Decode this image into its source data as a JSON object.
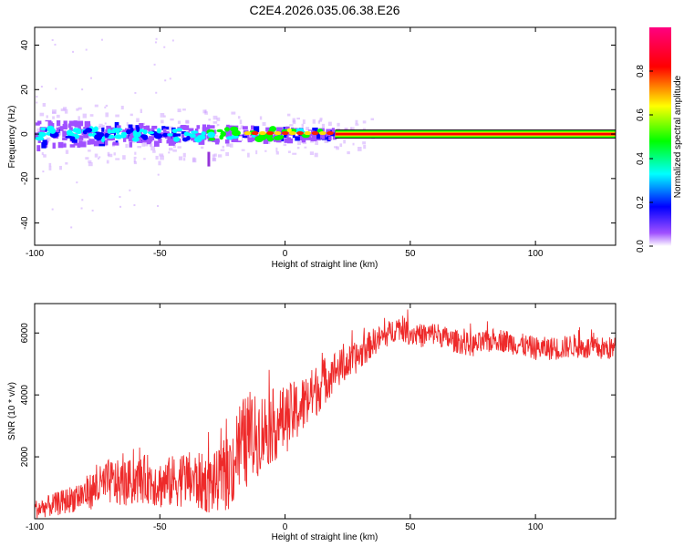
{
  "title": "C2E4.2026.035.06.38.E26",
  "chart_data": [
    {
      "type": "heatmap",
      "name": "spectrogram",
      "xlabel": "Height of straight line (km)",
      "ylabel": "Frequency (Hz)",
      "xlim": [
        -100,
        132
      ],
      "ylim": [
        -50,
        48
      ],
      "xticks": [
        -100,
        -50,
        0,
        50,
        100
      ],
      "yticks": [
        -40,
        -20,
        0,
        20,
        40
      ],
      "xtick_labels": [
        "-100",
        "-50",
        "0",
        "50",
        "100"
      ],
      "ytick_labels": [
        "-40",
        "-20",
        "0",
        "20",
        "40"
      ],
      "band_center_hz": 0,
      "colorbar": {
        "label": "Normalized spectral amplitude",
        "range": [
          0,
          1
        ],
        "ticks": [
          0.0,
          0.2,
          0.4,
          0.6,
          0.8
        ],
        "tick_labels": [
          "0.0",
          "0.2",
          "0.4",
          "0.6",
          "0.8"
        ],
        "stops": [
          "#ffffff",
          "#a050ff",
          "#0000ff",
          "#00ffff",
          "#00ff00",
          "#ffff00",
          "#ff0000",
          "#ff0080"
        ]
      },
      "features": [
        {
          "label": "broadband noise",
          "x_range_km": [
            -100,
            20
          ],
          "freq_spread_hz": 6,
          "amplitude": 0.3
        },
        {
          "label": "steady carrier",
          "x_range_km": [
            20,
            132
          ],
          "freq_hz": 0,
          "amplitude": 0.9
        }
      ]
    },
    {
      "type": "line",
      "name": "snr",
      "xlabel": "Height of straight line (km)",
      "ylabel": "SNR (10 * v/v)",
      "xlim": [
        -100,
        132
      ],
      "ylim": [
        0,
        6950
      ],
      "xticks": [
        -100,
        -50,
        0,
        50,
        100
      ],
      "yticks": [
        2000,
        4000,
        6000
      ],
      "xtick_labels": [
        "-100",
        "-50",
        "0",
        "50",
        "100"
      ],
      "ytick_labels": [
        "2000",
        "4000",
        "6000"
      ],
      "color": "#ee2a2a",
      "series": [
        {
          "name": "SNR",
          "x": [
            -100,
            -95,
            -90,
            -85,
            -80,
            -75,
            -70,
            -65,
            -60,
            -55,
            -50,
            -45,
            -40,
            -35,
            -30,
            -25,
            -22,
            -20,
            -18,
            -15,
            -12,
            -10,
            -5,
            0,
            5,
            10,
            15,
            20,
            25,
            30,
            35,
            40,
            45,
            50,
            55,
            60,
            65,
            70,
            75,
            80,
            85,
            90,
            95,
            100,
            105,
            110,
            115,
            120,
            125,
            132
          ],
          "mean": [
            300,
            400,
            500,
            650,
            800,
            1000,
            1200,
            1100,
            1200,
            1300,
            1100,
            1200,
            1300,
            1200,
            1100,
            1300,
            1500,
            2000,
            2300,
            2500,
            2600,
            2800,
            3000,
            3200,
            3500,
            3900,
            4400,
            4800,
            5000,
            5300,
            5700,
            5900,
            6200,
            6000,
            5900,
            6000,
            5800,
            5700,
            5600,
            5700,
            5800,
            5700,
            5600,
            5500,
            5500,
            5500,
            5600,
            5500,
            5500,
            5500
          ],
          "amplitude": [
            300,
            350,
            400,
            450,
            550,
            650,
            750,
            750,
            750,
            800,
            800,
            850,
            900,
            950,
            950,
            1000,
            1300,
            1500,
            1600,
            1500,
            1400,
            1300,
            1200,
            1100,
            1000,
            900,
            800,
            650,
            550,
            500,
            450,
            400,
            400,
            400,
            380,
            380,
            380,
            380,
            380,
            380,
            380,
            380,
            380,
            380,
            380,
            380,
            380,
            380,
            380,
            380
          ]
        }
      ]
    }
  ]
}
